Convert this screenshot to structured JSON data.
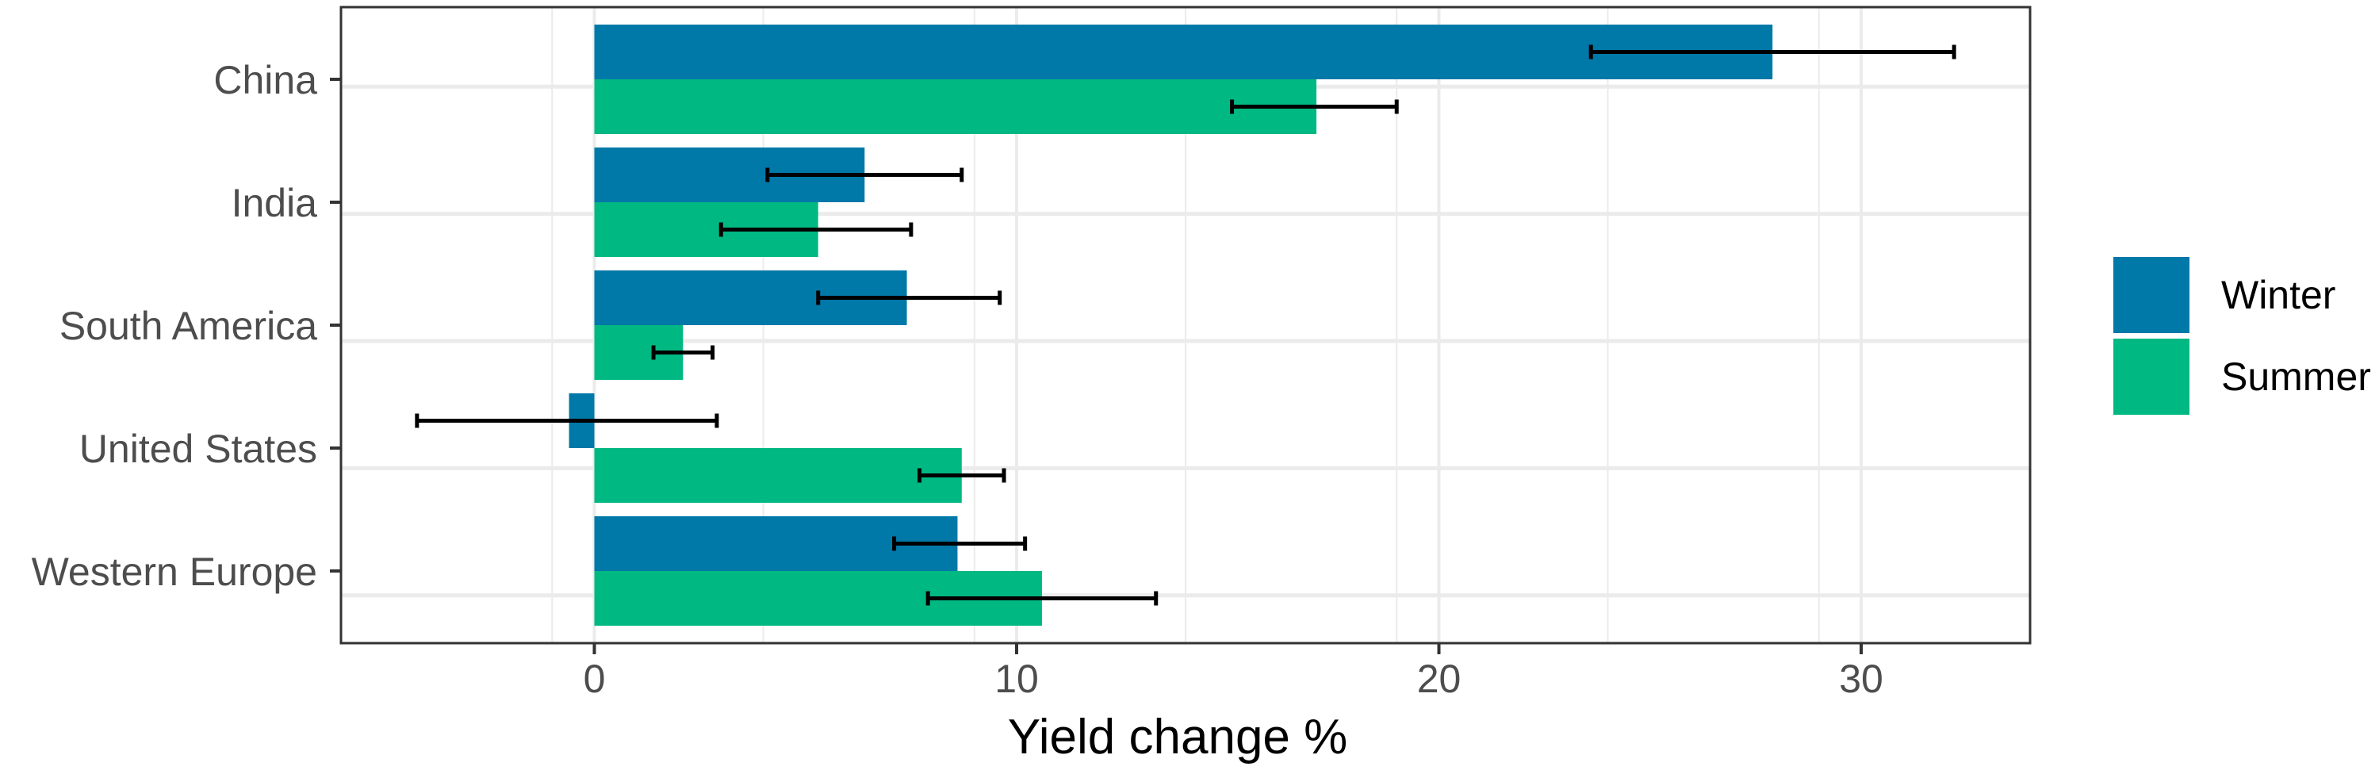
{
  "chart_data": {
    "type": "bar",
    "orientation": "horizontal",
    "title": "",
    "xlabel": "Yield change %",
    "ylabel": "",
    "xlim": [
      -6,
      34
    ],
    "x_ticks": [
      0,
      10,
      20,
      30
    ],
    "x_tick_labels": [
      "0",
      "10",
      "20",
      "30"
    ],
    "grid": true,
    "legend_position": "right",
    "categories": [
      "China",
      "India",
      "South America",
      "United States",
      "Western Europe"
    ],
    "series": [
      {
        "name": "Winter",
        "color": "#0078a8",
        "values": [
          27.9,
          6.4,
          7.4,
          -0.6,
          8.6
        ],
        "error_low": [
          23.6,
          4.1,
          5.3,
          -4.2,
          7.1
        ],
        "error_high": [
          32.2,
          8.7,
          9.6,
          2.9,
          10.2
        ]
      },
      {
        "name": "Summer",
        "color": "#00b882",
        "values": [
          17.1,
          5.3,
          2.1,
          8.7,
          10.6
        ],
        "error_low": [
          15.1,
          3.0,
          1.4,
          7.7,
          7.9
        ],
        "error_high": [
          19.0,
          7.5,
          2.8,
          9.7,
          13.3
        ]
      }
    ]
  }
}
